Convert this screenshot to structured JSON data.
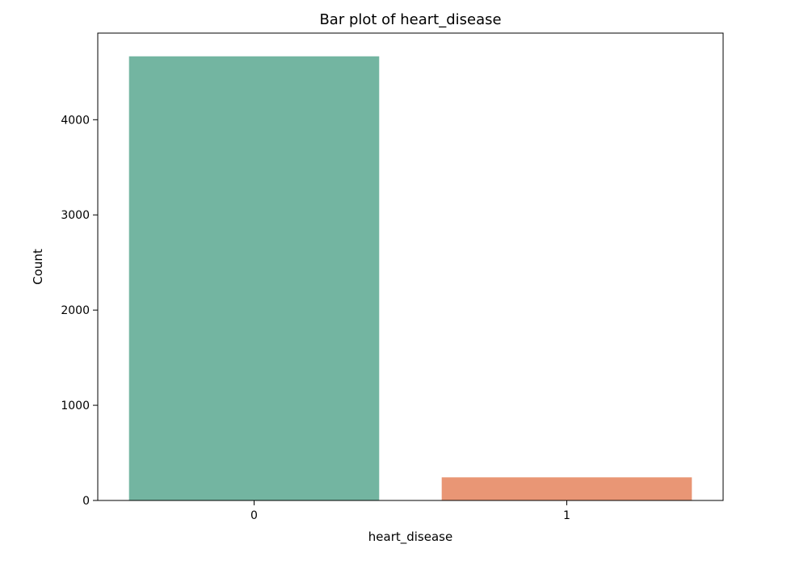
{
  "chart_data": {
    "type": "bar",
    "title": "Bar plot of heart_disease",
    "xlabel": "heart_disease",
    "ylabel": "Count",
    "categories": [
      "0",
      "1"
    ],
    "values": [
      4666,
      243
    ],
    "ylim": [
      0,
      4910
    ],
    "yticks": [
      0,
      1000,
      2000,
      3000,
      4000
    ],
    "ytick_labels": [
      "0",
      "1000",
      "2000",
      "3000",
      "4000"
    ],
    "grid": false,
    "legend": false,
    "colors": [
      "#73b5a1",
      "#e99675"
    ]
  }
}
